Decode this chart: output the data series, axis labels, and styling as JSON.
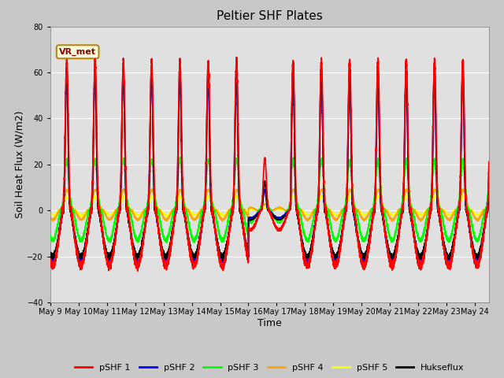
{
  "title": "Peltier SHF Plates",
  "xlabel": "Time",
  "ylabel": "Soil Heat Flux (W/m2)",
  "ylim": [
    -40,
    80
  ],
  "annotation": "VR_met",
  "series_colors": [
    "red",
    "blue",
    "lime",
    "orange",
    "yellow",
    "black"
  ],
  "series_labels": [
    "pSHF 1",
    "pSHF 2",
    "pSHF 3",
    "pSHF 4",
    "pSHF 5",
    "Hukseflux"
  ],
  "background_color": "#c8c8c8",
  "plot_bg_color": "#e0e0e0",
  "yticks": [
    -40,
    -20,
    0,
    20,
    40,
    60,
    80
  ],
  "xtick_labels": [
    "May 9",
    "May 10",
    "May 11",
    "May 12",
    "May 13",
    "May 14",
    "May 15",
    "May 16",
    "May 17",
    "May 18",
    "May 19",
    "May 20",
    "May 21",
    "May 22",
    "May 23",
    "May 24"
  ]
}
